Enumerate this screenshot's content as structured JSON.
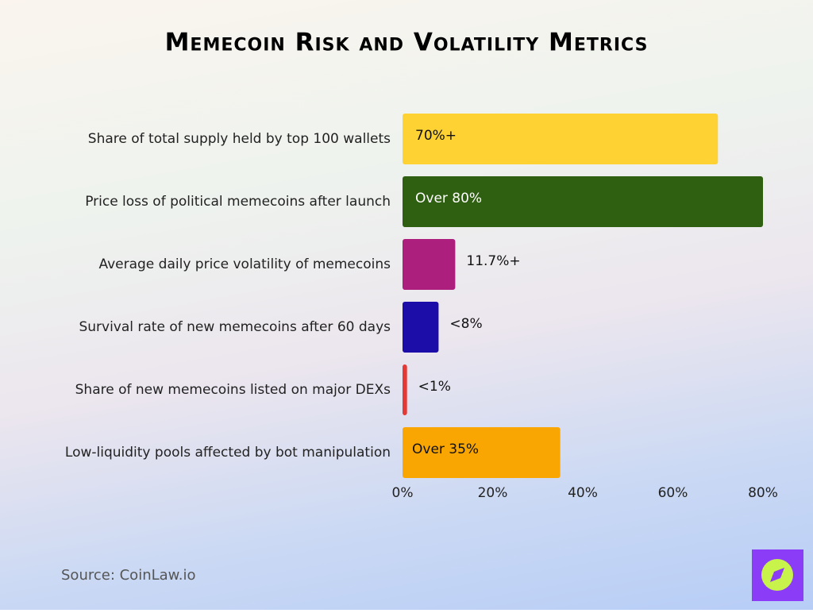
{
  "chart_data": {
    "type": "bar",
    "orientation": "horizontal",
    "title": "Memecoin Risk and Volatility Metrics",
    "categories": [
      "Share of total supply held by top 100 wallets",
      "Price loss of political memecoins after launch",
      "Average daily price volatility of memecoins",
      "Survival rate of new memecoins after 60 days",
      "Share of new memecoins listed on major DEXs",
      "Low-liquidity pools affected by bot manipulation"
    ],
    "values": [
      70,
      80,
      11.7,
      8,
      1,
      35
    ],
    "value_labels": [
      "70%+",
      "Over 80%",
      "11.7%+",
      "<8%",
      "<1%",
      "Over 35%"
    ],
    "colors": [
      "#ffd233",
      "#2f5f10",
      "#ad1f7c",
      "#1c0ca8",
      "#e53935",
      "#f9a603"
    ],
    "xlim": [
      0,
      80
    ],
    "xticks": [
      {
        "value": 0,
        "label": "0%"
      },
      {
        "value": 20,
        "label": "20%"
      },
      {
        "value": 40,
        "label": "40%"
      },
      {
        "value": 60,
        "label": "60%"
      },
      {
        "value": 80,
        "label": "80%"
      }
    ],
    "grid": false,
    "source": "Source: CoinLaw.io"
  }
}
